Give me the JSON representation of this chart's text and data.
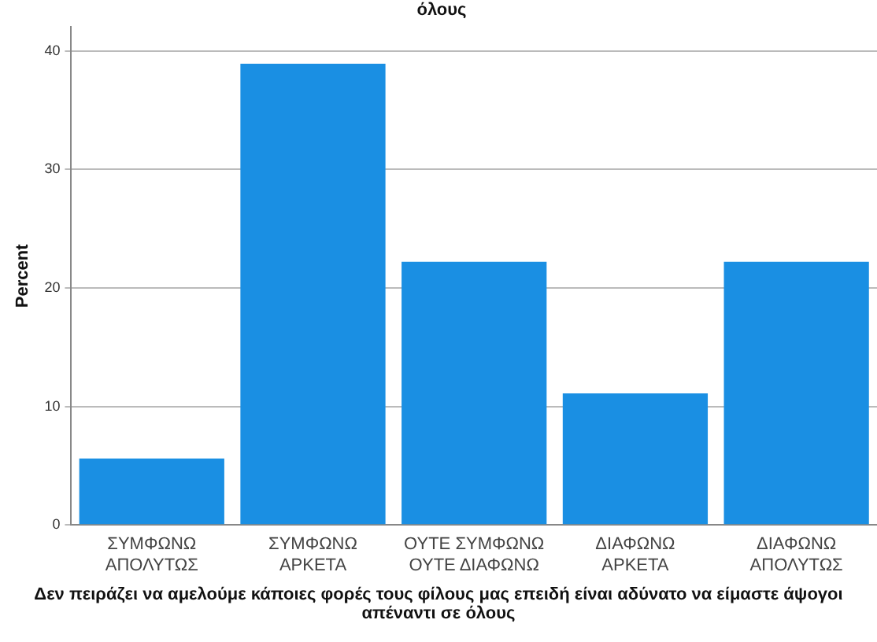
{
  "chart_data": {
    "type": "bar",
    "title": "όλους",
    "xlabel": "Δεν πειράζει να αμελούμε κάποιες φορές τους φίλους μας επειδή είναι αδύνατο να είμαστε άψογοι απέναντι σε όλους",
    "ylabel": "Percent",
    "categories": [
      "ΣΥΜΦΩΝΩ ΑΠΟΛΥΤΩΣ",
      "ΣΥΜΦΩΝΩ ΑΡΚΕΤΑ",
      "ΟΥΤΕ ΣΥΜΦΩΝΩ ΟΥΤΕ ΔΙΑΦΩΝΩ",
      "ΔΙΑΦΩΝΩ ΑΡΚΕΤΑ",
      "ΔΙΑΦΩΝΩ ΑΠΟΛΥΤΩΣ"
    ],
    "values": [
      5.6,
      38.9,
      22.2,
      11.1,
      22.2
    ],
    "color": "#1a8fe3",
    "ylim": [
      0,
      42
    ],
    "yticks": [
      0,
      10,
      20,
      30,
      40
    ],
    "grid": "y",
    "legend": false
  }
}
